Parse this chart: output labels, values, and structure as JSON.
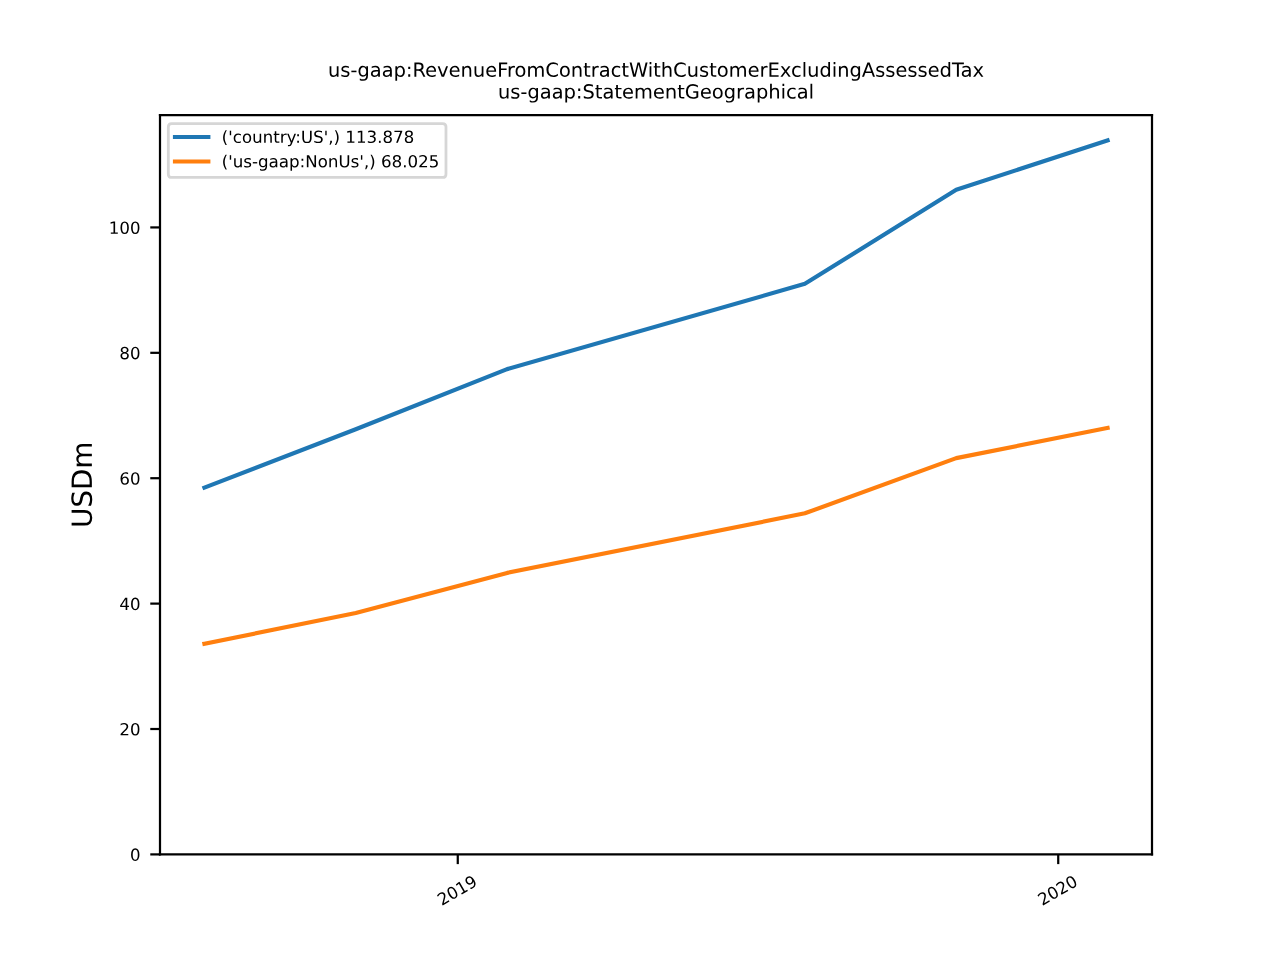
{
  "chart_data": {
    "type": "line",
    "title": "us-gaap:RevenueFromContractWithCustomerExcludingAssessedTax\nus-gaap:StatementGeographical",
    "ylabel": "USDm",
    "x": [
      "2018-07-31",
      "2018-10-31",
      "2019-01-31",
      "2019-07-31",
      "2019-10-31",
      "2020-01-31"
    ],
    "series": [
      {
        "name": "('country:US',) 113.878",
        "color": "#1f77b4",
        "values": [
          58.5,
          67.8,
          77.4,
          91.0,
          106.0,
          113.878
        ]
      },
      {
        "name": "('us-gaap:NonUs',) 68.025",
        "color": "#ff7f0e",
        "values": [
          33.6,
          38.5,
          44.9,
          54.4,
          63.2,
          68.025
        ]
      }
    ],
    "xlim": [
      "2018-07-04",
      "2020-02-27"
    ],
    "xticks": [
      {
        "value": "2019-01-01",
        "label": "2019"
      },
      {
        "value": "2020-01-01",
        "label": "2020"
      }
    ],
    "ylim": [
      0,
      117.9
    ],
    "yticks": [
      0,
      20,
      40,
      60,
      80,
      100
    ],
    "legend": "top left"
  }
}
